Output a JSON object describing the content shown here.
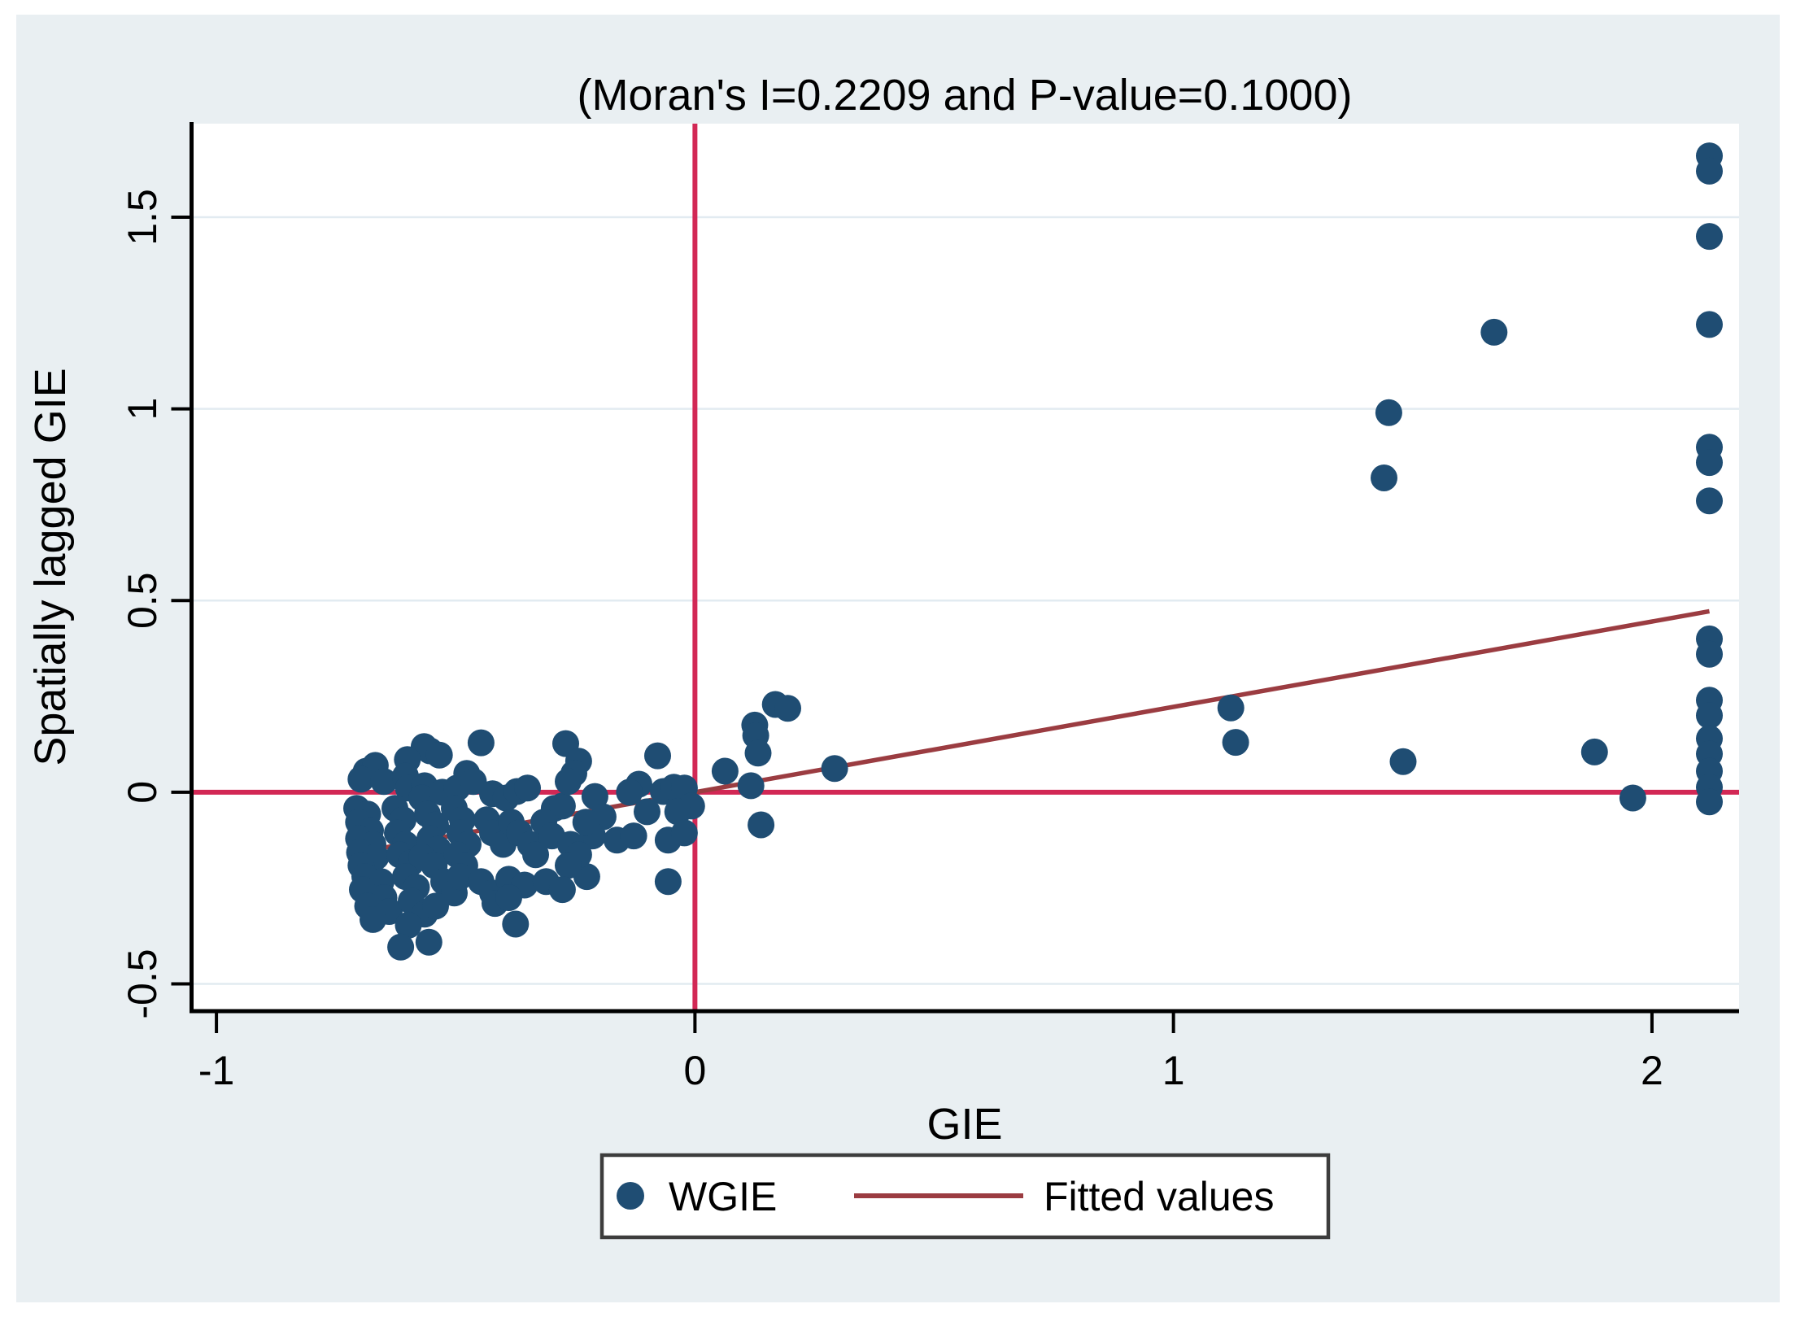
{
  "title": "(Moran's I=0.2209 and P-value=0.1000)",
  "axes": {
    "x_label": "GIE",
    "y_label": "Spatially lagged GIE",
    "x_tick_labels": [
      "-1",
      "0",
      "1",
      "2"
    ],
    "y_tick_labels": [
      "-0.5",
      "0",
      "0.5",
      "1",
      "1.5"
    ]
  },
  "legend": {
    "items": [
      {
        "label": "WGIE",
        "marker": "dot"
      },
      {
        "label": "Fitted values",
        "marker": "line"
      }
    ]
  },
  "colors": {
    "panel_bg": "#e9eff2",
    "plot_bg": "#ffffff",
    "gridline": "#e2ebf1",
    "axis": "#000000",
    "reference_line": "#d22855",
    "fitted_line": "#9b3c41",
    "marker": "#1f4d73",
    "legend_border": "#3d3d3d"
  },
  "chart_data": {
    "type": "scatter",
    "title": "(Moran's I=0.2209 and P-value=0.1000)",
    "xlabel": "GIE",
    "ylabel": "Spatially lagged GIE",
    "moran_i": 0.2209,
    "p_value": 0.1,
    "xlim": [
      -1.052,
      2.182
    ],
    "ylim": [
      -0.571,
      1.744
    ],
    "x_ticks": [
      -1,
      0,
      1,
      2
    ],
    "y_ticks": [
      -0.5,
      0,
      0.5,
      1,
      1.5
    ],
    "grid": "horizontal-only",
    "legend_position": "bottom-center",
    "reference_lines": {
      "vertical_x": 0,
      "horizontal_y": 0
    },
    "fitted_line": {
      "name": "Fitted values",
      "x": [
        -0.71,
        2.12
      ],
      "y": [
        -0.158,
        0.472
      ],
      "slope": 0.2209,
      "intercept": 0.0
    },
    "series": [
      {
        "name": "WGIE",
        "points": [
          [
            2.12,
            1.66
          ],
          [
            2.12,
            1.62
          ],
          [
            2.12,
            1.45
          ],
          [
            2.12,
            1.22
          ],
          [
            2.12,
            0.9
          ],
          [
            2.12,
            0.86
          ],
          [
            2.12,
            0.76
          ],
          [
            2.12,
            0.4
          ],
          [
            2.12,
            0.36
          ],
          [
            2.12,
            0.24
          ],
          [
            2.12,
            0.2
          ],
          [
            2.12,
            0.14
          ],
          [
            2.12,
            0.1
          ],
          [
            2.12,
            0.055
          ],
          [
            2.12,
            0.013
          ],
          [
            2.12,
            -0.025
          ],
          [
            1.67,
            1.2
          ],
          [
            1.45,
            0.99
          ],
          [
            1.44,
            0.82
          ],
          [
            1.48,
            0.08
          ],
          [
            1.88,
            0.105
          ],
          [
            1.96,
            -0.015
          ],
          [
            1.12,
            0.22
          ],
          [
            1.13,
            0.13
          ],
          [
            0.292,
            0.062
          ],
          [
            0.168,
            0.229
          ],
          [
            0.194,
            0.219
          ],
          [
            0.125,
            0.175
          ],
          [
            0.127,
            0.148
          ],
          [
            0.132,
            0.102
          ],
          [
            0.063,
            0.055
          ],
          [
            0.117,
            0.017
          ],
          [
            0.138,
            -0.085
          ],
          [
            -0.078,
            0.095
          ],
          [
            -0.117,
            0.021
          ],
          [
            -0.137,
            0.0
          ],
          [
            -0.209,
            -0.011
          ],
          [
            -0.192,
            -0.064
          ],
          [
            -0.1,
            -0.051
          ],
          [
            -0.066,
            0.002
          ],
          [
            -0.044,
            0.013
          ],
          [
            -0.022,
            0.011
          ],
          [
            -0.007,
            -0.036
          ],
          [
            -0.036,
            -0.051
          ],
          [
            -0.214,
            -0.114
          ],
          [
            -0.163,
            -0.125
          ],
          [
            -0.128,
            -0.114
          ],
          [
            -0.056,
            -0.125
          ],
          [
            -0.022,
            -0.106
          ],
          [
            -0.226,
            -0.22
          ],
          [
            -0.056,
            -0.233
          ],
          [
            -0.447,
            0.129
          ],
          [
            -0.27,
            0.127
          ],
          [
            -0.554,
            0.108
          ],
          [
            -0.566,
            0.119
          ],
          [
            -0.534,
            0.097
          ],
          [
            -0.601,
            0.085
          ],
          [
            -0.243,
            0.081
          ],
          [
            -0.687,
            0.055
          ],
          [
            -0.668,
            0.07
          ],
          [
            -0.698,
            0.034
          ],
          [
            -0.65,
            0.028
          ],
          [
            -0.605,
            0.042
          ],
          [
            -0.599,
            0.011
          ],
          [
            -0.565,
            0.017
          ],
          [
            -0.571,
            -0.015
          ],
          [
            -0.528,
            0.0
          ],
          [
            -0.497,
            0.011
          ],
          [
            -0.477,
            0.049
          ],
          [
            -0.463,
            0.028
          ],
          [
            -0.423,
            -0.004
          ],
          [
            -0.395,
            -0.015
          ],
          [
            -0.372,
            0.002
          ],
          [
            -0.35,
            0.011
          ],
          [
            -0.294,
            -0.042
          ],
          [
            -0.277,
            -0.036
          ],
          [
            -0.253,
            0.049
          ],
          [
            -0.265,
            0.028
          ],
          [
            -0.707,
            -0.042
          ],
          [
            -0.684,
            -0.057
          ],
          [
            -0.703,
            -0.078
          ],
          [
            -0.678,
            -0.1
          ],
          [
            -0.703,
            -0.121
          ],
          [
            -0.673,
            -0.136
          ],
          [
            -0.701,
            -0.157
          ],
          [
            -0.667,
            -0.169
          ],
          [
            -0.698,
            -0.191
          ],
          [
            -0.627,
            -0.042
          ],
          [
            -0.61,
            -0.072
          ],
          [
            -0.622,
            -0.106
          ],
          [
            -0.605,
            -0.136
          ],
          [
            -0.617,
            -0.163
          ],
          [
            -0.593,
            -0.184
          ],
          [
            -0.559,
            -0.057
          ],
          [
            -0.542,
            -0.085
          ],
          [
            -0.554,
            -0.121
          ],
          [
            -0.537,
            -0.148
          ],
          [
            -0.571,
            -0.169
          ],
          [
            -0.545,
            -0.191
          ],
          [
            -0.503,
            -0.042
          ],
          [
            -0.486,
            -0.072
          ],
          [
            -0.491,
            -0.106
          ],
          [
            -0.474,
            -0.136
          ],
          [
            -0.497,
            -0.163
          ],
          [
            -0.481,
            -0.191
          ],
          [
            -0.435,
            -0.072
          ],
          [
            -0.423,
            -0.106
          ],
          [
            -0.401,
            -0.136
          ],
          [
            -0.384,
            -0.078
          ],
          [
            -0.367,
            -0.106
          ],
          [
            -0.344,
            -0.136
          ],
          [
            -0.333,
            -0.163
          ],
          [
            -0.316,
            -0.078
          ],
          [
            -0.299,
            -0.114
          ],
          [
            -0.26,
            -0.136
          ],
          [
            -0.243,
            -0.163
          ],
          [
            -0.265,
            -0.191
          ],
          [
            -0.228,
            -0.078
          ],
          [
            -0.69,
            -0.22
          ],
          [
            -0.656,
            -0.233
          ],
          [
            -0.695,
            -0.254
          ],
          [
            -0.65,
            -0.275
          ],
          [
            -0.684,
            -0.297
          ],
          [
            -0.639,
            -0.311
          ],
          [
            -0.673,
            -0.332
          ],
          [
            -0.605,
            -0.22
          ],
          [
            -0.582,
            -0.248
          ],
          [
            -0.593,
            -0.284
          ],
          [
            -0.565,
            -0.318
          ],
          [
            -0.599,
            -0.347
          ],
          [
            -0.525,
            -0.233
          ],
          [
            -0.503,
            -0.263
          ],
          [
            -0.542,
            -0.297
          ],
          [
            -0.491,
            -0.22
          ],
          [
            -0.447,
            -0.233
          ],
          [
            -0.423,
            -0.263
          ],
          [
            -0.389,
            -0.227
          ],
          [
            -0.356,
            -0.242
          ],
          [
            -0.311,
            -0.233
          ],
          [
            -0.277,
            -0.254
          ],
          [
            -0.418,
            -0.29
          ],
          [
            -0.389,
            -0.275
          ],
          [
            -0.375,
            -0.344
          ],
          [
            -0.615,
            -0.404
          ],
          [
            -0.556,
            -0.391
          ]
        ]
      }
    ]
  }
}
